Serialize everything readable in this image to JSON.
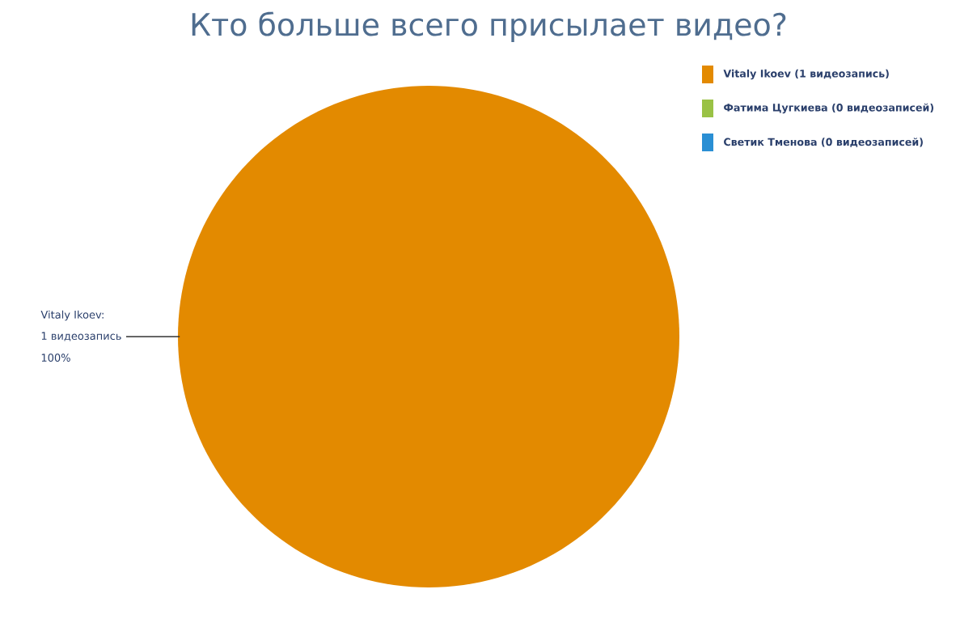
{
  "chart_data": {
    "type": "pie",
    "title": "Кто больше всего присылает видео?",
    "categories": [
      "Vitaly Ikoev (1 видеозапись)",
      "Фатима Цугкиева (0 видеозаписей)",
      "Светик Тменова (0 видеозаписей)"
    ],
    "values": [
      1,
      0,
      0
    ],
    "colors": [
      "#e38a00",
      "#9ac245",
      "#2a8fd4"
    ],
    "value_labels": [
      [
        "Vitaly Ikoev:",
        "1 видеозапись",
        "100%"
      ],
      null,
      null
    ],
    "legend": "top right"
  }
}
